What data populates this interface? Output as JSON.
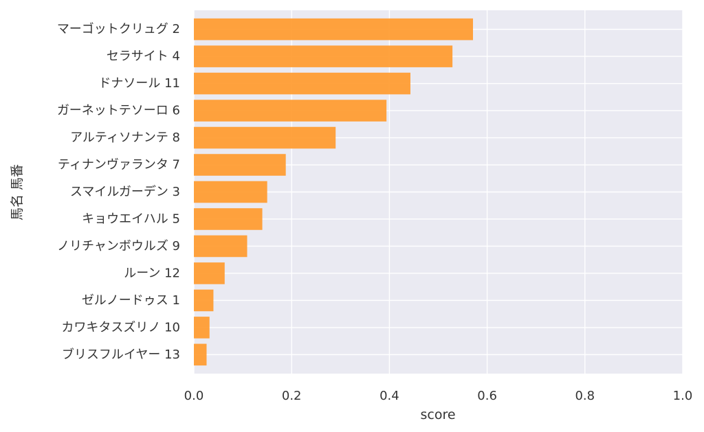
{
  "chart_data": {
    "type": "bar",
    "orientation": "horizontal",
    "categories": [
      "マーゴットクリュグ 2",
      "セラサイト 4",
      "ドナソール 11",
      "ガーネットテソーロ 6",
      "アルティソナンテ 8",
      "ティナンヴァランタ 7",
      "スマイルガーデン 3",
      "キョウエイハル 5",
      "ノリチャンボウルズ 9",
      "ルーン 12",
      "ゼルノードゥス 1",
      "カワキタスズリノ 10",
      "ブリスフルイヤー 13"
    ],
    "values": [
      0.571,
      0.529,
      0.443,
      0.394,
      0.29,
      0.188,
      0.15,
      0.14,
      0.109,
      0.063,
      0.04,
      0.032,
      0.026
    ],
    "xlabel": "score",
    "ylabel": "馬名 馬番",
    "xlim": [
      0,
      1.0
    ],
    "xticks": [
      "0.0",
      "0.2",
      "0.4",
      "0.6",
      "0.8",
      "1.0"
    ],
    "grid": true,
    "colors": {
      "bar": "#ff9a2e",
      "plot_background": "#eaeaf2",
      "grid": "#ffffff",
      "text": "#333333"
    }
  }
}
